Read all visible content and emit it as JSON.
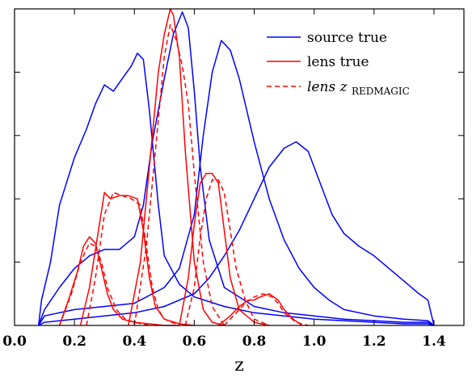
{
  "chart_data": {
    "type": "line",
    "title": "",
    "xlabel": "z",
    "ylabel": "",
    "xlim": [
      0.0,
      1.5
    ],
    "ylim": [
      0,
      1.0
    ],
    "grid": false,
    "legend": {
      "placement": "top-right",
      "entries": [
        {
          "label": "source true",
          "color": "#0000ff",
          "dash": false
        },
        {
          "label": "lens true",
          "color": "#ff0000",
          "dash": false
        },
        {
          "label_main": "lens z",
          "label_sub": "REDMAGIC",
          "color": "#ff0000",
          "dash": true
        }
      ]
    },
    "xticks": [
      {
        "value": 0.0,
        "label": "0.0"
      },
      {
        "value": 0.2,
        "label": "0.2"
      },
      {
        "value": 0.4,
        "label": "0.4"
      },
      {
        "value": 0.6,
        "label": "0.6"
      },
      {
        "value": 0.8,
        "label": "0.8"
      },
      {
        "value": 1.0,
        "label": "1.0"
      },
      {
        "value": 1.2,
        "label": "1.2"
      },
      {
        "value": 1.4,
        "label": "1.4"
      }
    ],
    "yticks": [
      0.2,
      0.4,
      0.6,
      0.8,
      1.0
    ],
    "series": [
      {
        "group": "source true",
        "color": "#0000ff",
        "dash": false,
        "x": [
          0.08,
          0.09,
          0.12,
          0.15,
          0.2,
          0.24,
          0.27,
          0.3,
          0.33,
          0.36,
          0.39,
          0.41,
          0.43,
          0.45,
          0.48,
          0.5,
          0.55,
          0.6,
          0.7,
          0.8,
          0.9,
          1.0,
          1.1,
          1.2,
          1.3,
          1.38,
          1.4
        ],
        "y": [
          0.0,
          0.08,
          0.2,
          0.38,
          0.53,
          0.62,
          0.7,
          0.76,
          0.74,
          0.78,
          0.82,
          0.86,
          0.84,
          0.68,
          0.38,
          0.22,
          0.13,
          0.09,
          0.06,
          0.04,
          0.03,
          0.02,
          0.015,
          0.01,
          0.005,
          0.005,
          0.0
        ]
      },
      {
        "group": "source true",
        "color": "#0000ff",
        "dash": false,
        "x": [
          0.08,
          0.1,
          0.15,
          0.2,
          0.25,
          0.3,
          0.35,
          0.4,
          0.43,
          0.46,
          0.5,
          0.53,
          0.56,
          0.58,
          0.6,
          0.62,
          0.65,
          0.7,
          0.8,
          0.9,
          1.0,
          1.1,
          1.2,
          1.3,
          1.38,
          1.4
        ],
        "y": [
          0.0,
          0.05,
          0.12,
          0.18,
          0.22,
          0.24,
          0.24,
          0.28,
          0.38,
          0.58,
          0.78,
          0.92,
          0.99,
          0.94,
          0.74,
          0.5,
          0.27,
          0.12,
          0.06,
          0.04,
          0.03,
          0.02,
          0.015,
          0.01,
          0.01,
          0.0
        ]
      },
      {
        "group": "source true",
        "color": "#0000ff",
        "dash": false,
        "x": [
          0.08,
          0.1,
          0.2,
          0.3,
          0.4,
          0.5,
          0.55,
          0.6,
          0.63,
          0.66,
          0.69,
          0.72,
          0.75,
          0.8,
          0.85,
          0.9,
          0.95,
          1.0,
          1.05,
          1.1,
          1.2,
          1.3,
          1.38,
          1.4
        ],
        "y": [
          0.0,
          0.03,
          0.05,
          0.06,
          0.07,
          0.12,
          0.18,
          0.35,
          0.6,
          0.8,
          0.9,
          0.87,
          0.78,
          0.58,
          0.4,
          0.27,
          0.18,
          0.12,
          0.08,
          0.05,
          0.03,
          0.02,
          0.015,
          0.0
        ]
      },
      {
        "group": "source true",
        "color": "#0000ff",
        "dash": false,
        "x": [
          0.08,
          0.1,
          0.2,
          0.3,
          0.4,
          0.5,
          0.6,
          0.65,
          0.7,
          0.75,
          0.8,
          0.85,
          0.9,
          0.94,
          0.98,
          1.02,
          1.06,
          1.1,
          1.15,
          1.2,
          1.25,
          1.3,
          1.35,
          1.38,
          1.4
        ],
        "y": [
          0.0,
          0.01,
          0.02,
          0.03,
          0.04,
          0.06,
          0.1,
          0.15,
          0.22,
          0.3,
          0.4,
          0.5,
          0.56,
          0.58,
          0.55,
          0.45,
          0.35,
          0.29,
          0.25,
          0.22,
          0.18,
          0.14,
          0.1,
          0.08,
          0.0
        ]
      },
      {
        "group": "lens true",
        "color": "#ff0000",
        "dash": false,
        "x": [
          0.15,
          0.18,
          0.21,
          0.23,
          0.25,
          0.27,
          0.29,
          0.31,
          0.33,
          0.36,
          0.4,
          0.45,
          0.5,
          0.55
        ],
        "y": [
          0.0,
          0.08,
          0.17,
          0.25,
          0.28,
          0.26,
          0.18,
          0.1,
          0.05,
          0.02,
          0.01,
          0.005,
          0.0,
          0.0
        ]
      },
      {
        "group": "lens true",
        "color": "#ff0000",
        "dash": false,
        "x": [
          0.22,
          0.25,
          0.28,
          0.3,
          0.32,
          0.35,
          0.38,
          0.41,
          0.43,
          0.45,
          0.47,
          0.5,
          0.55,
          0.6
        ],
        "y": [
          0.0,
          0.12,
          0.3,
          0.42,
          0.4,
          0.41,
          0.41,
          0.4,
          0.3,
          0.15,
          0.06,
          0.02,
          0.005,
          0.0
        ]
      },
      {
        "group": "lens true",
        "color": "#ff0000",
        "dash": false,
        "x": [
          0.38,
          0.42,
          0.45,
          0.48,
          0.5,
          0.52,
          0.53,
          0.55,
          0.57,
          0.6,
          0.63,
          0.66,
          0.7
        ],
        "y": [
          0.0,
          0.2,
          0.5,
          0.8,
          0.92,
          1.0,
          0.98,
          0.85,
          0.55,
          0.2,
          0.05,
          0.01,
          0.0
        ]
      },
      {
        "group": "lens true",
        "color": "#ff0000",
        "dash": false,
        "x": [
          0.55,
          0.58,
          0.6,
          0.62,
          0.64,
          0.66,
          0.68,
          0.7,
          0.72,
          0.75,
          0.8,
          0.85
        ],
        "y": [
          0.0,
          0.15,
          0.32,
          0.45,
          0.48,
          0.48,
          0.45,
          0.3,
          0.15,
          0.05,
          0.01,
          0.0
        ]
      },
      {
        "group": "lens true",
        "color": "#ff0000",
        "dash": false,
        "x": [
          0.68,
          0.72,
          0.75,
          0.78,
          0.8,
          0.82,
          0.85,
          0.88,
          0.9,
          0.93,
          0.96
        ],
        "y": [
          0.0,
          0.03,
          0.06,
          0.08,
          0.08,
          0.09,
          0.1,
          0.08,
          0.05,
          0.02,
          0.0
        ]
      },
      {
        "group": "lens z_REDMAGIC",
        "color": "#ff0000",
        "dash": true,
        "x": [
          0.15,
          0.19,
          0.22,
          0.25,
          0.27,
          0.29,
          0.31,
          0.34,
          0.37,
          0.4,
          0.45
        ],
        "y": [
          0.0,
          0.1,
          0.2,
          0.26,
          0.25,
          0.2,
          0.12,
          0.05,
          0.02,
          0.01,
          0.0
        ]
      },
      {
        "group": "lens z_REDMAGIC",
        "color": "#ff0000",
        "dash": true,
        "x": [
          0.24,
          0.27,
          0.3,
          0.33,
          0.36,
          0.39,
          0.42,
          0.44,
          0.46,
          0.48,
          0.5,
          0.55
        ],
        "y": [
          0.0,
          0.15,
          0.35,
          0.42,
          0.41,
          0.4,
          0.38,
          0.25,
          0.12,
          0.05,
          0.02,
          0.0
        ]
      },
      {
        "group": "lens z_REDMAGIC",
        "color": "#ff0000",
        "dash": true,
        "x": [
          0.4,
          0.44,
          0.47,
          0.5,
          0.52,
          0.54,
          0.56,
          0.58,
          0.6,
          0.63,
          0.66,
          0.7
        ],
        "y": [
          0.0,
          0.25,
          0.55,
          0.85,
          0.95,
          0.9,
          0.82,
          0.7,
          0.48,
          0.2,
          0.06,
          0.0
        ]
      },
      {
        "group": "lens z_REDMAGIC",
        "color": "#ff0000",
        "dash": true,
        "x": [
          0.57,
          0.6,
          0.62,
          0.64,
          0.66,
          0.68,
          0.7,
          0.72,
          0.74,
          0.77,
          0.8,
          0.85
        ],
        "y": [
          0.0,
          0.12,
          0.28,
          0.4,
          0.46,
          0.46,
          0.42,
          0.3,
          0.18,
          0.08,
          0.02,
          0.0
        ]
      },
      {
        "group": "lens z_REDMAGIC",
        "color": "#ff0000",
        "dash": true,
        "x": [
          0.7,
          0.74,
          0.77,
          0.8,
          0.83,
          0.86,
          0.88,
          0.9,
          0.94,
          0.98
        ],
        "y": [
          0.0,
          0.04,
          0.07,
          0.09,
          0.1,
          0.09,
          0.07,
          0.04,
          0.01,
          0.0
        ]
      }
    ]
  }
}
